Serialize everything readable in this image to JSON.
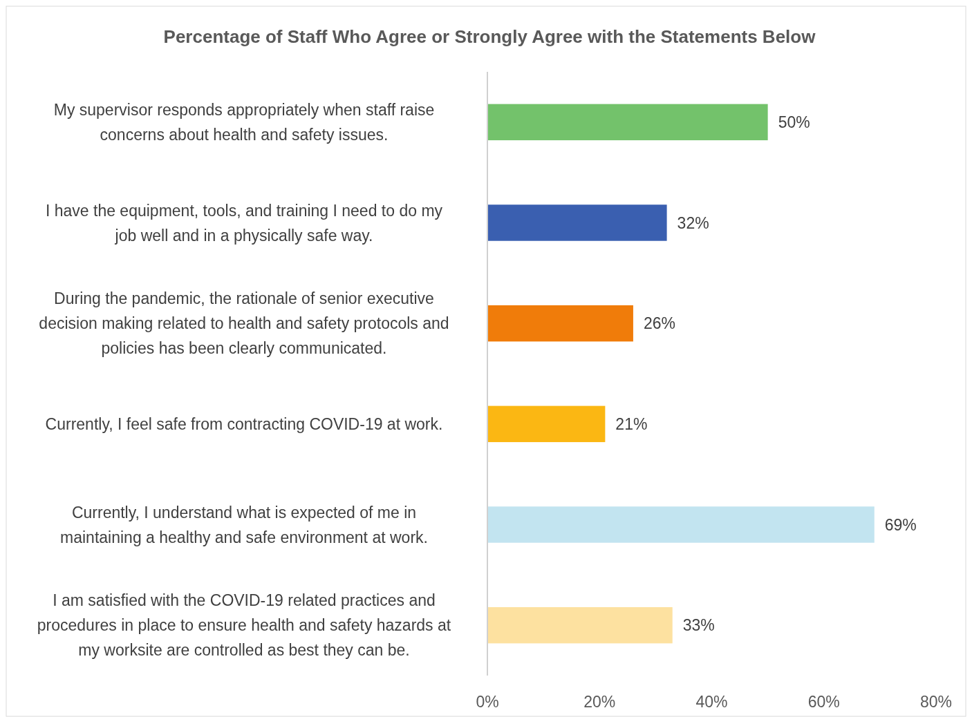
{
  "chart_data": {
    "type": "bar",
    "orientation": "horizontal",
    "title": "Percentage of Staff Who Agree or Strongly Agree with the Statements Below",
    "categories": [
      "My supervisor responds appropriately when staff raise concerns about health and safety issues.",
      "I have the equipment, tools, and training I need to do my job well and in a physically safe way.",
      "During the pandemic, the rationale of senior executive decision making related to health and safety protocols and policies has been clearly communicated.",
      "Currently, I feel safe from contracting COVID-19 at work.",
      "Currently, I understand what is expected of me in maintaining a healthy and safe environment at work.",
      "I am satisfied with the COVID-19 related practices and procedures in place to ensure health and safety hazards at my worksite are controlled as best they can be."
    ],
    "values": [
      50,
      32,
      26,
      21,
      69,
      33
    ],
    "value_labels": [
      "50%",
      "32%",
      "26%",
      "21%",
      "69%",
      "33%"
    ],
    "colors": [
      "#73c26b",
      "#3a5fb0",
      "#f07c0a",
      "#fbb713",
      "#c2e4f0",
      "#fde1a0"
    ],
    "xlim": [
      0,
      80
    ],
    "xticks": [
      {
        "value": 0,
        "label": "0%"
      },
      {
        "value": 20,
        "label": "20%"
      },
      {
        "value": 40,
        "label": "40%"
      },
      {
        "value": 60,
        "label": "60%"
      },
      {
        "value": 80,
        "label": "80%"
      }
    ],
    "grid": false
  }
}
